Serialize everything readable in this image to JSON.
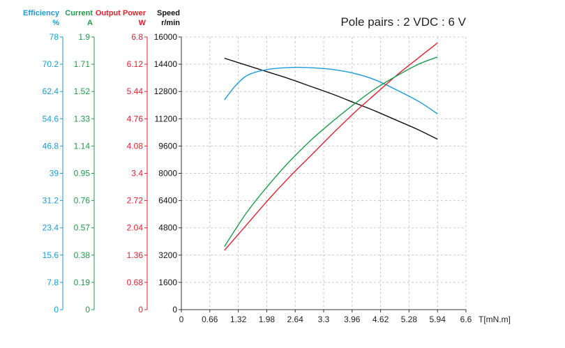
{
  "chart_data": {
    "type": "line",
    "title": "Pole pairs : 2   VDC : 6 V",
    "x_axis": {
      "label": "T[mN.m]",
      "min": 0,
      "max": 6.6,
      "ticks": [
        "0",
        "0.66",
        "1.32",
        "1.98",
        "2.64",
        "3.3",
        "3.96",
        "4.62",
        "5.28",
        "5.94",
        "6.6"
      ]
    },
    "y_axes": [
      {
        "key": "efficiency",
        "name": "Efficiency",
        "unit": "%",
        "color": "#1a9ad6",
        "min": 0,
        "max": 78,
        "ticks": [
          "78",
          "70.2",
          "62.4",
          "54.6",
          "46.8",
          "39",
          "31.2",
          "23.4",
          "15.6",
          "7.8",
          "0"
        ]
      },
      {
        "key": "current",
        "name": "Current",
        "unit": "A",
        "color": "#1e9a4a",
        "min": 0,
        "max": 1.9,
        "ticks": [
          "1.9",
          "1.71",
          "1.52",
          "1.33",
          "1.14",
          "0.95",
          "0.76",
          "0.57",
          "0.38",
          "0.19",
          "0"
        ]
      },
      {
        "key": "power",
        "name": "Output Power",
        "unit": "W",
        "color": "#e0202e",
        "min": 0,
        "max": 6.8,
        "ticks": [
          "6.8",
          "6.12",
          "5.44",
          "4.76",
          "4.08",
          "3.4",
          "2.72",
          "2.04",
          "1.36",
          "0.68",
          "0"
        ]
      },
      {
        "key": "speed",
        "name": "Speed",
        "unit": "r/min",
        "color": "#111111",
        "min": 0,
        "max": 16000,
        "ticks": [
          "16000",
          "14400",
          "12800",
          "11200",
          "9600",
          "8000",
          "6400",
          "4800",
          "3200",
          "1600",
          "0"
        ]
      }
    ],
    "grid": true,
    "series": [
      {
        "axis": "speed",
        "color": "#111111",
        "x": [
          1.0,
          1.5,
          2.0,
          2.5,
          3.0,
          3.5,
          4.0,
          4.5,
          5.0,
          5.5,
          5.94
        ],
        "y": [
          14750,
          14350,
          13950,
          13550,
          13100,
          12650,
          12150,
          11650,
          11100,
          10550,
          10000
        ]
      },
      {
        "axis": "efficiency",
        "color": "#1a9ad6",
        "x": [
          1.0,
          1.25,
          1.5,
          1.8,
          2.2,
          2.64,
          3.0,
          3.5,
          4.0,
          4.5,
          5.0,
          5.5,
          5.94
        ],
        "y": [
          60.0,
          64.0,
          66.8,
          68.2,
          69.0,
          69.3,
          69.2,
          68.7,
          67.6,
          65.7,
          62.8,
          59.6,
          56.0
        ]
      },
      {
        "axis": "power",
        "color": "#e0202e",
        "x": [
          1.0,
          1.5,
          2.0,
          2.5,
          3.0,
          3.5,
          4.0,
          4.5,
          5.0,
          5.5,
          5.94
        ],
        "y": [
          1.48,
          2.1,
          2.72,
          3.3,
          3.84,
          4.38,
          4.9,
          5.38,
          5.85,
          6.28,
          6.65
        ]
      },
      {
        "axis": "current",
        "color": "#1e9a4a",
        "x": [
          1.0,
          1.5,
          2.0,
          2.5,
          3.0,
          3.5,
          4.0,
          4.5,
          5.0,
          5.5,
          5.94
        ],
        "y": [
          0.44,
          0.67,
          0.86,
          1.03,
          1.18,
          1.31,
          1.43,
          1.54,
          1.63,
          1.71,
          1.76
        ]
      }
    ]
  }
}
